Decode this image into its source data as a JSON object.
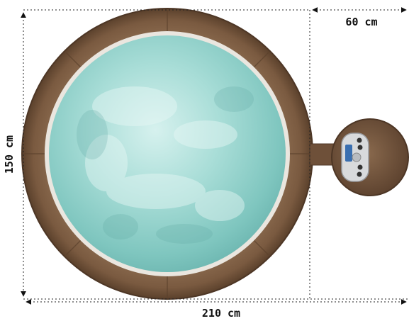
{
  "dimensions": {
    "total_length": "210 cm",
    "depth": "150 cm",
    "control_offset": "60 cm"
  },
  "colors": {
    "rim": "#7a5a40",
    "rim_dark": "#5b412c",
    "water": "#9ed6d0",
    "water_light": "#d6f1ee",
    "water_dark": "#6fb8b2",
    "inner_lip": "#eae6df",
    "control_panel": "#d8dadc",
    "dimension_line": "#222222"
  },
  "icons": {
    "hot_tub": "hot-tub-top-view",
    "control_panel": "control-panel-buttons"
  }
}
